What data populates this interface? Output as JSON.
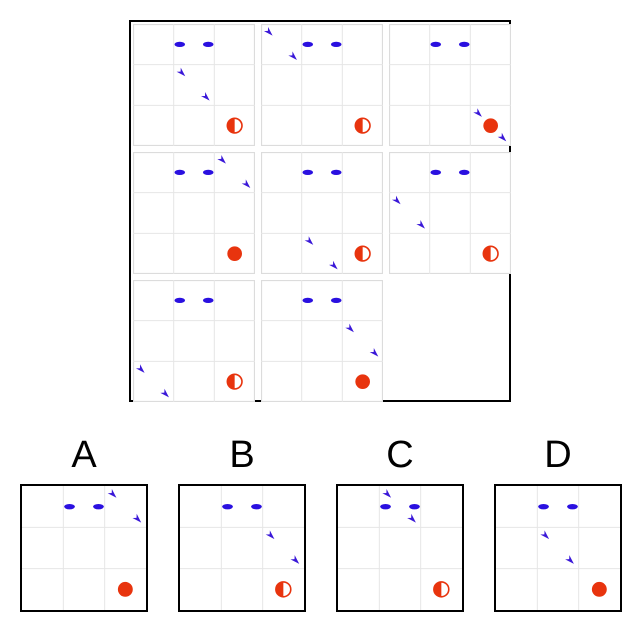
{
  "colors": {
    "grid": "#e6e6e6",
    "border": "#dcdcdc",
    "ellipse": "#2a10e0",
    "arrow": "#3a18d8",
    "circle": "#e8340e"
  },
  "options": [
    {
      "label": "A"
    },
    {
      "label": "B"
    },
    {
      "label": "C"
    },
    {
      "label": "D"
    }
  ],
  "matrix": [
    {
      "arrows": [
        [
          1.2,
          1.2
        ],
        [
          1.8,
          1.8
        ]
      ],
      "circle": "half"
    },
    {
      "arrows": [
        [
          0.2,
          0.2
        ],
        [
          0.8,
          0.8
        ]
      ],
      "circle": "half"
    },
    {
      "arrows": [
        [
          2.2,
          2.2
        ],
        [
          2.8,
          2.8
        ]
      ],
      "circle": "full"
    },
    {
      "arrows": [
        [
          2.2,
          0.2
        ],
        [
          2.8,
          0.8
        ]
      ],
      "circle": "full"
    },
    {
      "arrows": [
        [
          1.2,
          2.2
        ],
        [
          1.8,
          2.8
        ]
      ],
      "circle": "half"
    },
    {
      "arrows": [
        [
          0.2,
          1.2
        ],
        [
          0.8,
          1.8
        ]
      ],
      "circle": "half"
    },
    {
      "arrows": [
        [
          0.2,
          2.2
        ],
        [
          0.8,
          2.8
        ]
      ],
      "circle": "half"
    },
    {
      "arrows": [
        [
          2.2,
          1.2
        ],
        [
          2.8,
          1.8
        ]
      ],
      "circle": "full"
    }
  ],
  "answers": [
    {
      "arrows": [
        [
          2.2,
          0.2
        ],
        [
          2.8,
          0.8
        ]
      ],
      "circle": "full"
    },
    {
      "arrows": [
        [
          2.2,
          1.2
        ],
        [
          2.8,
          1.8
        ]
      ],
      "circle": "half"
    },
    {
      "arrows": [
        [
          1.2,
          0.2
        ],
        [
          1.8,
          0.8
        ]
      ],
      "circle": "half"
    },
    {
      "arrows": [
        [
          1.2,
          1.2
        ],
        [
          1.8,
          1.8
        ]
      ],
      "circle": "full"
    }
  ]
}
